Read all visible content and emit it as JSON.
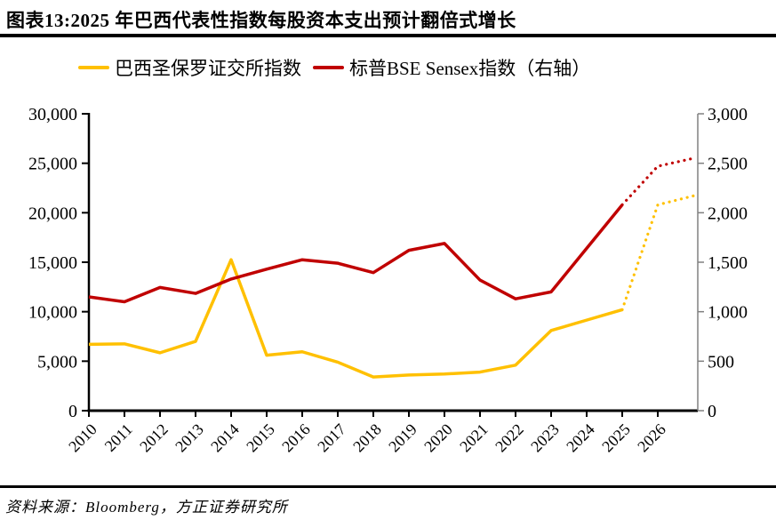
{
  "figure": {
    "title": "图表13:2025 年巴西代表性指数每股资本支出预计翻倍式增长",
    "source": "资料来源：Bloomberg，方正证券研究所"
  },
  "chart_data": {
    "type": "line",
    "title": "2025 年巴西代表性指数每股资本支出预计翻倍式增长",
    "x": [
      2010,
      2011,
      2012,
      2013,
      2014,
      2015,
      2016,
      2017,
      2018,
      2019,
      2020,
      2021,
      2022,
      2023,
      2024,
      2025,
      2026,
      2027
    ],
    "x_tick_labels": [
      "2010",
      "2011",
      "2012",
      "2013",
      "2014",
      "2015",
      "2016",
      "2017",
      "2018",
      "2019",
      "2020",
      "2021",
      "2022",
      "2023",
      "2024",
      "2025",
      "2026"
    ],
    "left_axis": {
      "min": 0,
      "max": 30000,
      "step": 5000
    },
    "right_axis": {
      "min": 0,
      "max": 3000,
      "step": 500
    },
    "grid": false,
    "legend_position": "top",
    "series": [
      {
        "name": "巴西圣保罗证交所指数",
        "axis": "left",
        "color": "#FFC000",
        "solid_until": 2025,
        "values": [
          6700,
          6750,
          5850,
          7000,
          15250,
          5600,
          5950,
          4900,
          3400,
          3600,
          3700,
          3900,
          4600,
          8100,
          9150,
          10200,
          20800,
          21700
        ]
      },
      {
        "name": "标普BSE Sensex指数（右轴）",
        "axis": "right",
        "color": "#C00000",
        "solid_until": 2025,
        "values": [
          1150,
          1100,
          1245,
          1185,
          1330,
          1430,
          1525,
          1490,
          1395,
          1620,
          1690,
          1320,
          1130,
          1200,
          1640,
          2080,
          2470,
          2550
        ]
      }
    ]
  },
  "colors": {
    "axis_left": "#000000",
    "axis_right": "#808080",
    "text": "#000000",
    "background": "#FFFFFF"
  }
}
